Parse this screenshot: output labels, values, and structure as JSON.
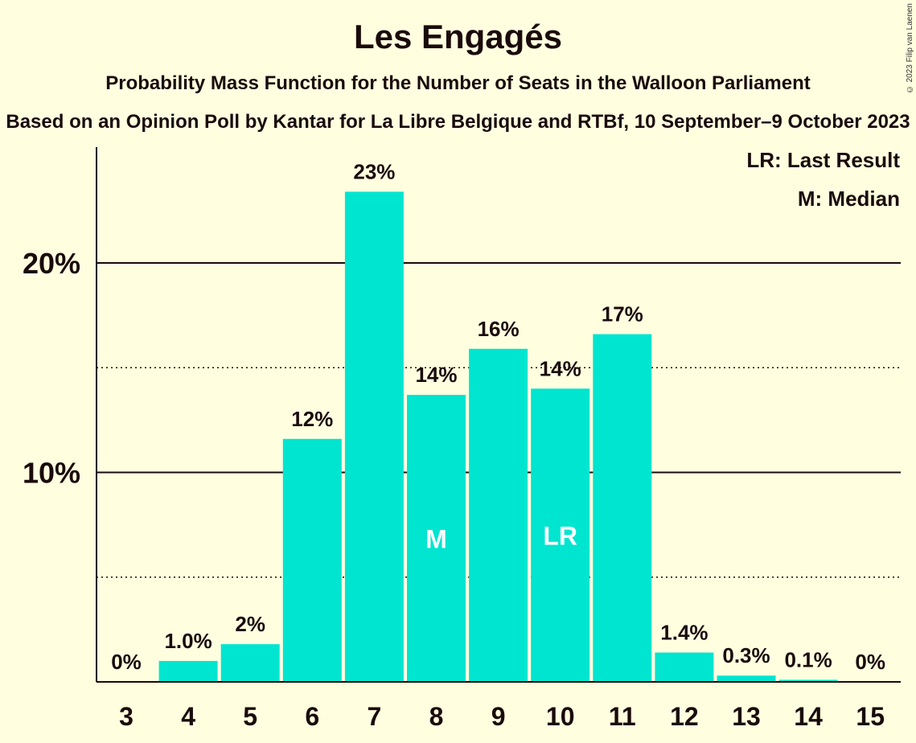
{
  "chart_data": {
    "type": "bar",
    "title": "Les Engagés",
    "subtitle": "Probability Mass Function for the Number of Seats in the Walloon Parliament",
    "subsubtitle": "Based on an Opinion Poll by Kantar for La Libre Belgique and RTBf, 10 September–9 October 2023",
    "copyright": "© 2023 Filip van Laenen",
    "categories": [
      "3",
      "4",
      "5",
      "6",
      "7",
      "8",
      "9",
      "10",
      "11",
      "12",
      "13",
      "14",
      "15"
    ],
    "values": [
      0,
      1.0,
      1.8,
      11.6,
      23.4,
      13.7,
      15.9,
      14.0,
      16.6,
      1.4,
      0.3,
      0.1,
      0
    ],
    "value_labels": [
      "0%",
      "1.0%",
      "2%",
      "12%",
      "23%",
      "14%",
      "16%",
      "14%",
      "17%",
      "1.4%",
      "0.3%",
      "0.1%",
      "0%"
    ],
    "bar_markers": {
      "8": "M",
      "10": "LR"
    },
    "ylim": [
      0,
      25
    ],
    "yticks": [
      10,
      20
    ],
    "ytick_labels": [
      "10%",
      "20%"
    ],
    "minor_gridlines": [
      5,
      15
    ],
    "legend": [
      "LR: Last Result",
      "M: Median"
    ],
    "legend_position": "top-right",
    "colors": {
      "bar": "#00e5d0",
      "background": "#ffffe0",
      "text": "#1a0a0a"
    }
  }
}
